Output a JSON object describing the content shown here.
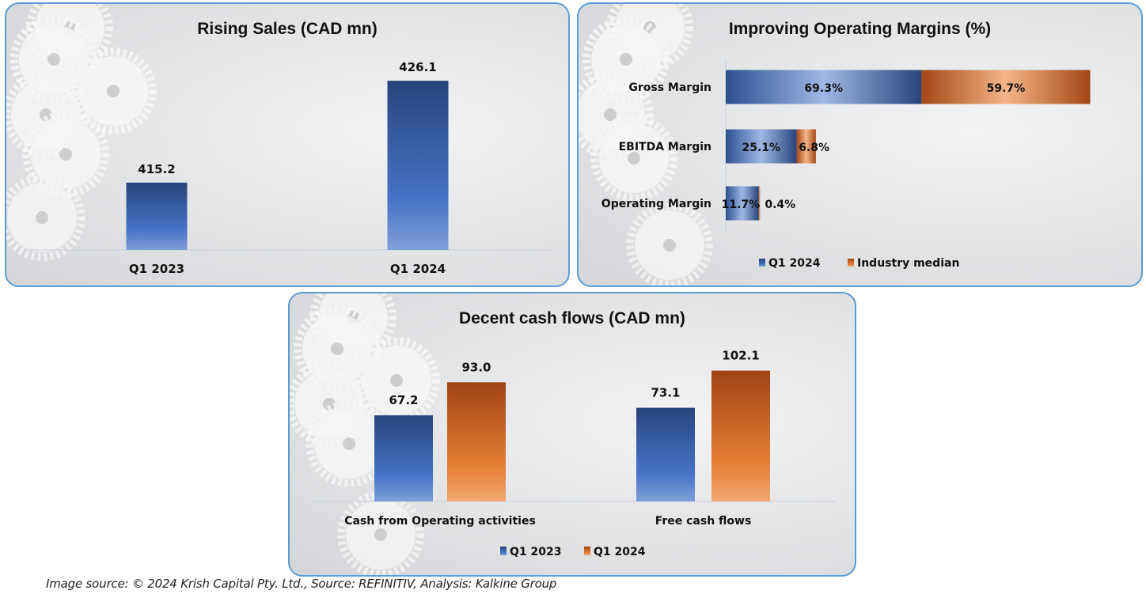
{
  "colors": {
    "blue": "#4472c4",
    "blue_dark": "#2a4a82",
    "orange": "#ed7d31",
    "orange_dark": "#a9481a",
    "panel_border": "#5b9bd5"
  },
  "footer": "Image source: © 2024 Krish Capital Pty. Ltd., Source: REFINITIV, Analysis: Kalkine Group",
  "chart_data": [
    {
      "type": "bar",
      "title": "Rising Sales (CAD mn)",
      "categories": [
        "Q1 2023",
        "Q1 2024"
      ],
      "values": [
        415.2,
        426.1
      ],
      "labels": [
        "415.2",
        "426.1"
      ],
      "ylim": [
        408,
        430
      ],
      "xlabel": "",
      "ylabel": "",
      "grid": false
    },
    {
      "type": "bar",
      "orientation": "horizontal-stacked",
      "title": "Improving Operating Margins (%)",
      "categories": [
        "Gross Margin",
        "EBITDA Margin",
        "Operating Margin"
      ],
      "series": [
        {
          "name": "Q1 2024",
          "values": [
            69.3,
            25.1,
            11.7
          ],
          "labels": [
            "69.3%",
            "25.1%",
            "11.7%"
          ]
        },
        {
          "name": "Industry median",
          "values": [
            59.7,
            6.8,
            0.4
          ],
          "labels": [
            "59.7%",
            "6.8%",
            "0.4%"
          ]
        }
      ],
      "legend": "bottom",
      "grid": false
    },
    {
      "type": "bar",
      "title": "Decent cash flows (CAD mn)",
      "categories": [
        "Cash from Operating activities",
        "Free cash flows"
      ],
      "series": [
        {
          "name": "Q1 2023",
          "values": [
            67.2,
            73.1
          ],
          "labels": [
            "67.2",
            "73.1"
          ]
        },
        {
          "name": "Q1 2024",
          "values": [
            93.0,
            102.1
          ],
          "labels": [
            "93.0",
            "102.1"
          ]
        }
      ],
      "ylim": [
        0,
        110
      ],
      "legend": "bottom",
      "grid": false
    }
  ]
}
